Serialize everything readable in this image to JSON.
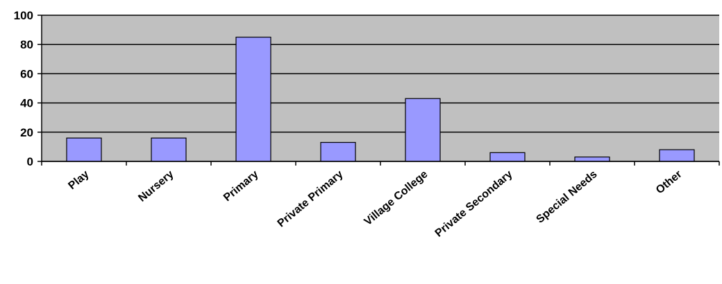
{
  "chart_data": {
    "type": "bar",
    "categories": [
      "Play",
      "Nursery",
      "Primary",
      "Private Primary",
      "Village College",
      "Private Secondary",
      "Special Needs",
      "Other"
    ],
    "values": [
      16,
      16,
      85,
      13,
      43,
      6,
      3,
      8
    ],
    "yticks": [
      "0",
      "20",
      "40",
      "60",
      "80",
      "100"
    ],
    "title": "",
    "xlabel": "",
    "ylabel": "",
    "ylim": [
      0,
      100
    ],
    "grid": true,
    "legend": "none",
    "colors": {
      "plot_background": "#c0c0c0",
      "bar_fill": "#9999ff",
      "bar_stroke": "#000000",
      "gridline": "#000000"
    }
  }
}
